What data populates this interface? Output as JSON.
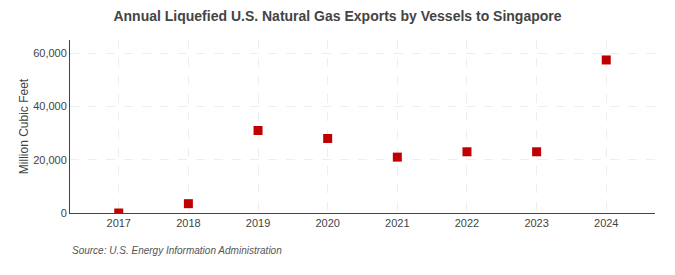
{
  "chart_data": {
    "type": "scatter",
    "title": "Annual Liquefied U.S. Natural Gas Exports by Vessels to Singapore",
    "ylabel": "Million Cubic Feet",
    "source": "Source: U.S. Energy Information Administration",
    "x": [
      2017,
      2018,
      2019,
      2020,
      2021,
      2022,
      2023,
      2024
    ],
    "values": [
      0,
      3500,
      31000,
      28000,
      21000,
      23000,
      23000,
      57500
    ],
    "color": "#c00000",
    "marker": "square",
    "xlim": [
      2016.3,
      2024.7
    ],
    "xticks": [
      2017,
      2018,
      2019,
      2020,
      2021,
      2022,
      2023,
      2024
    ],
    "ylim": [
      0,
      65000
    ],
    "yticks": [
      0,
      {
        "value": 20000,
        "label": "20,000"
      },
      {
        "value": 40000,
        "label": "40,000"
      },
      {
        "value": 60000,
        "label": "60,000"
      }
    ],
    "grid": true
  }
}
